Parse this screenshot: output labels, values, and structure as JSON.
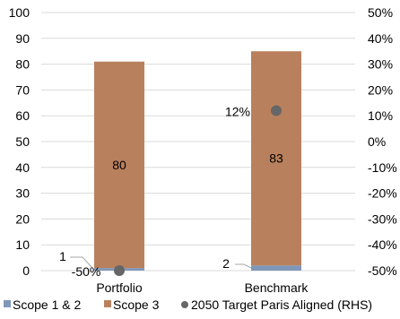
{
  "chart_data": {
    "type": "bar",
    "stacked": true,
    "categories": [
      "Portfolio",
      "Benchmark"
    ],
    "series": [
      {
        "name": "Scope 1 & 2",
        "values": [
          1,
          2
        ],
        "color": "#7f97b8",
        "axis": "left"
      },
      {
        "name": "Scope 3",
        "values": [
          80,
          83
        ],
        "color": "#b9805d",
        "axis": "left"
      }
    ],
    "scatter_series": {
      "name": "2050 Target Paris Aligned (RHS)",
      "values": [
        -50,
        12
      ],
      "labels": [
        "-50%",
        "12%"
      ],
      "color": "#666666",
      "axis": "right"
    },
    "data_labels": {
      "scope12": [
        "1",
        "2"
      ],
      "scope3": [
        "80",
        "83"
      ]
    },
    "ylim": [
      0,
      100
    ],
    "yticks": [
      "0",
      "10",
      "20",
      "30",
      "40",
      "50",
      "60",
      "70",
      "80",
      "90",
      "100"
    ],
    "y2lim": [
      -50,
      50
    ],
    "y2ticks": [
      "-50%",
      "-40%",
      "-30%",
      "-20%",
      "-10%",
      "0%",
      "10%",
      "20%",
      "30%",
      "40%",
      "50%"
    ],
    "grid": true,
    "legend": {
      "position": "bottom",
      "entries": [
        "Scope 1 & 2",
        "Scope 3",
        "2050 Target Paris Aligned (RHS)"
      ]
    },
    "title": "",
    "xlabel": "",
    "ylabel": ""
  }
}
